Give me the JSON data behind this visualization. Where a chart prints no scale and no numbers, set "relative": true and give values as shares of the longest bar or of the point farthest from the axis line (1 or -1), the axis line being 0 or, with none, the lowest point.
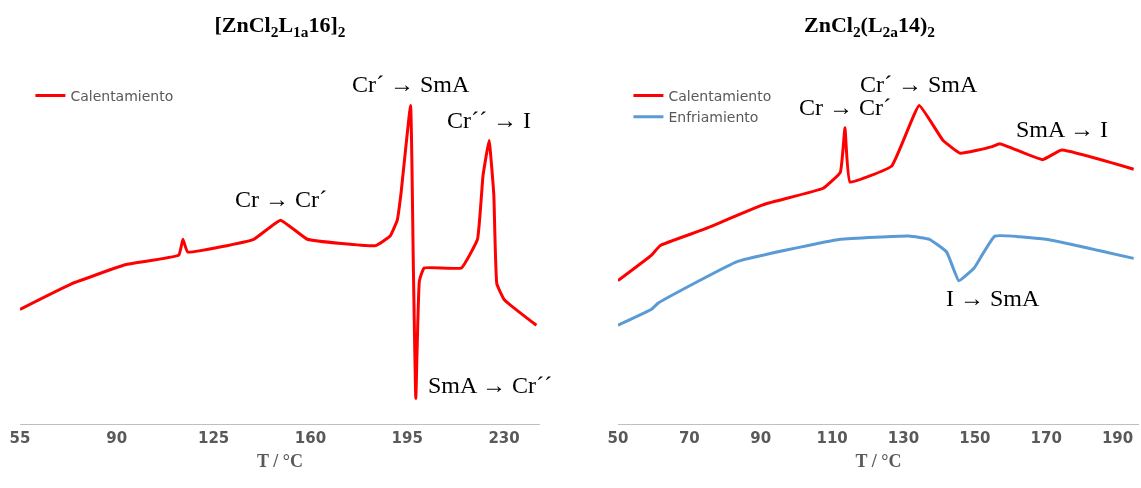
{
  "chart_data": [
    {
      "type": "line",
      "title": "[ZnCl$_{2}$L$_{1a}$16]$_{2}$",
      "xlabel": "T / °C",
      "relative": true,
      "xlim": [
        55,
        243
      ],
      "xticks": [
        55,
        90,
        125,
        160,
        195,
        230
      ],
      "tick_labels": "x",
      "grid": false,
      "legend": "top left",
      "marker": "none",
      "line_style": "solid",
      "series": [
        {
          "name": "Calentamiento",
          "color": "#ff0000",
          "x": [
            55,
            73.6,
            93.1,
            112.4,
            113.9,
            115.6,
            139.5,
            149.2,
            158.9,
            183.5,
            188.8,
            191.4,
            192.7,
            196.2,
            197.2,
            198.1,
            199.4,
            201.1,
            214.6,
            220.4,
            222.4,
            224.6,
            226.3,
            227.4,
            230.1,
            241.7
          ],
          "values": [
            0.36,
            0.44,
            0.5,
            0.53,
            0.58,
            0.54,
            0.58,
            0.64,
            0.58,
            0.56,
            0.59,
            0.64,
            0.72,
            1.0,
            0.5,
            0.08,
            0.45,
            0.49,
            0.49,
            0.58,
            0.78,
            0.89,
            0.72,
            0.44,
            0.39,
            0.31
          ]
        }
      ],
      "annotations": [
        {
          "text": "Cr → Cr´",
          "x": 149.2,
          "y": 0.64
        },
        {
          "text": "Cr´ → SmA",
          "x": 196.2,
          "y": 1.0
        },
        {
          "text": "Cr´´ → I",
          "x": 224.6,
          "y": 0.89
        },
        {
          "text": "SmA → Cr´´",
          "x": 198.1,
          "y": 0.08
        }
      ]
    },
    {
      "type": "line",
      "title": "ZnCl$_{2}$(L$_{2a}$14)$_{2}$",
      "xlabel": "T / °C",
      "relative": true,
      "xlim": [
        50,
        196
      ],
      "xticks": [
        50,
        70,
        90,
        110,
        130,
        150,
        170,
        190
      ],
      "tick_labels": "x",
      "grid": false,
      "legend": "top left",
      "marker": "none",
      "line_style": "solid",
      "series": [
        {
          "name": "Calentamiento",
          "color": "#ff0000",
          "x": [
            50,
            59.4,
            61.8,
            73.8,
            91.1,
            107.5,
            112.3,
            113.6,
            115.0,
            126.7,
            134.4,
            141.1,
            145.9,
            154.6,
            157.0,
            169.0,
            174.3,
            194.5
          ],
          "values": [
            0.45,
            0.53,
            0.56,
            0.61,
            0.69,
            0.74,
            0.79,
            0.93,
            0.76,
            0.81,
            1.0,
            0.89,
            0.85,
            0.87,
            0.88,
            0.83,
            0.86,
            0.8
          ]
        },
        {
          "name": "Enfriamiento",
          "color": "#5b9bd5",
          "x": [
            50,
            59.4,
            61.3,
            83.4,
            112.3,
            131.5,
            137.3,
            142.1,
            145.5,
            149.8,
            155.6,
            170.0,
            194.5
          ],
          "values": [
            0.31,
            0.36,
            0.38,
            0.51,
            0.58,
            0.59,
            0.58,
            0.54,
            0.45,
            0.49,
            0.59,
            0.58,
            0.52
          ]
        }
      ],
      "annotations": [
        {
          "text": "Cr → Cr´",
          "x": 113.6,
          "y": 0.93
        },
        {
          "text": "Cr´ → SmA",
          "x": 134.4,
          "y": 1.0
        },
        {
          "text": "SmA → I",
          "x": 174.3,
          "y": 0.86
        },
        {
          "text": "I → SmA",
          "x": 145.5,
          "y": 0.45
        }
      ]
    }
  ]
}
